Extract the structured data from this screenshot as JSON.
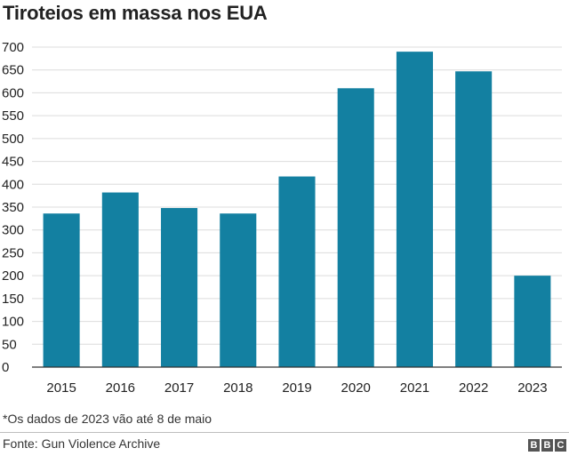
{
  "chart_data": {
    "type": "bar",
    "title": "Tiroteios em massa nos EUA",
    "categories": [
      "2015",
      "2016",
      "2017",
      "2018",
      "2019",
      "2020",
      "2021",
      "2022",
      "2023"
    ],
    "values": [
      336,
      382,
      348,
      336,
      417,
      610,
      690,
      647,
      200
    ],
    "y_ticks": [
      0,
      50,
      100,
      150,
      200,
      250,
      300,
      350,
      400,
      450,
      500,
      550,
      600,
      650,
      700
    ],
    "ylim": [
      0,
      700
    ],
    "xlabel": "",
    "ylabel": "",
    "grid": true,
    "bar_color": "#1380A1"
  },
  "footnote": "*Os dados de 2023 vão até 8 de maio",
  "source": "Fonte: Gun Violence Archive",
  "logo": {
    "letters": [
      "B",
      "B",
      "C"
    ]
  }
}
